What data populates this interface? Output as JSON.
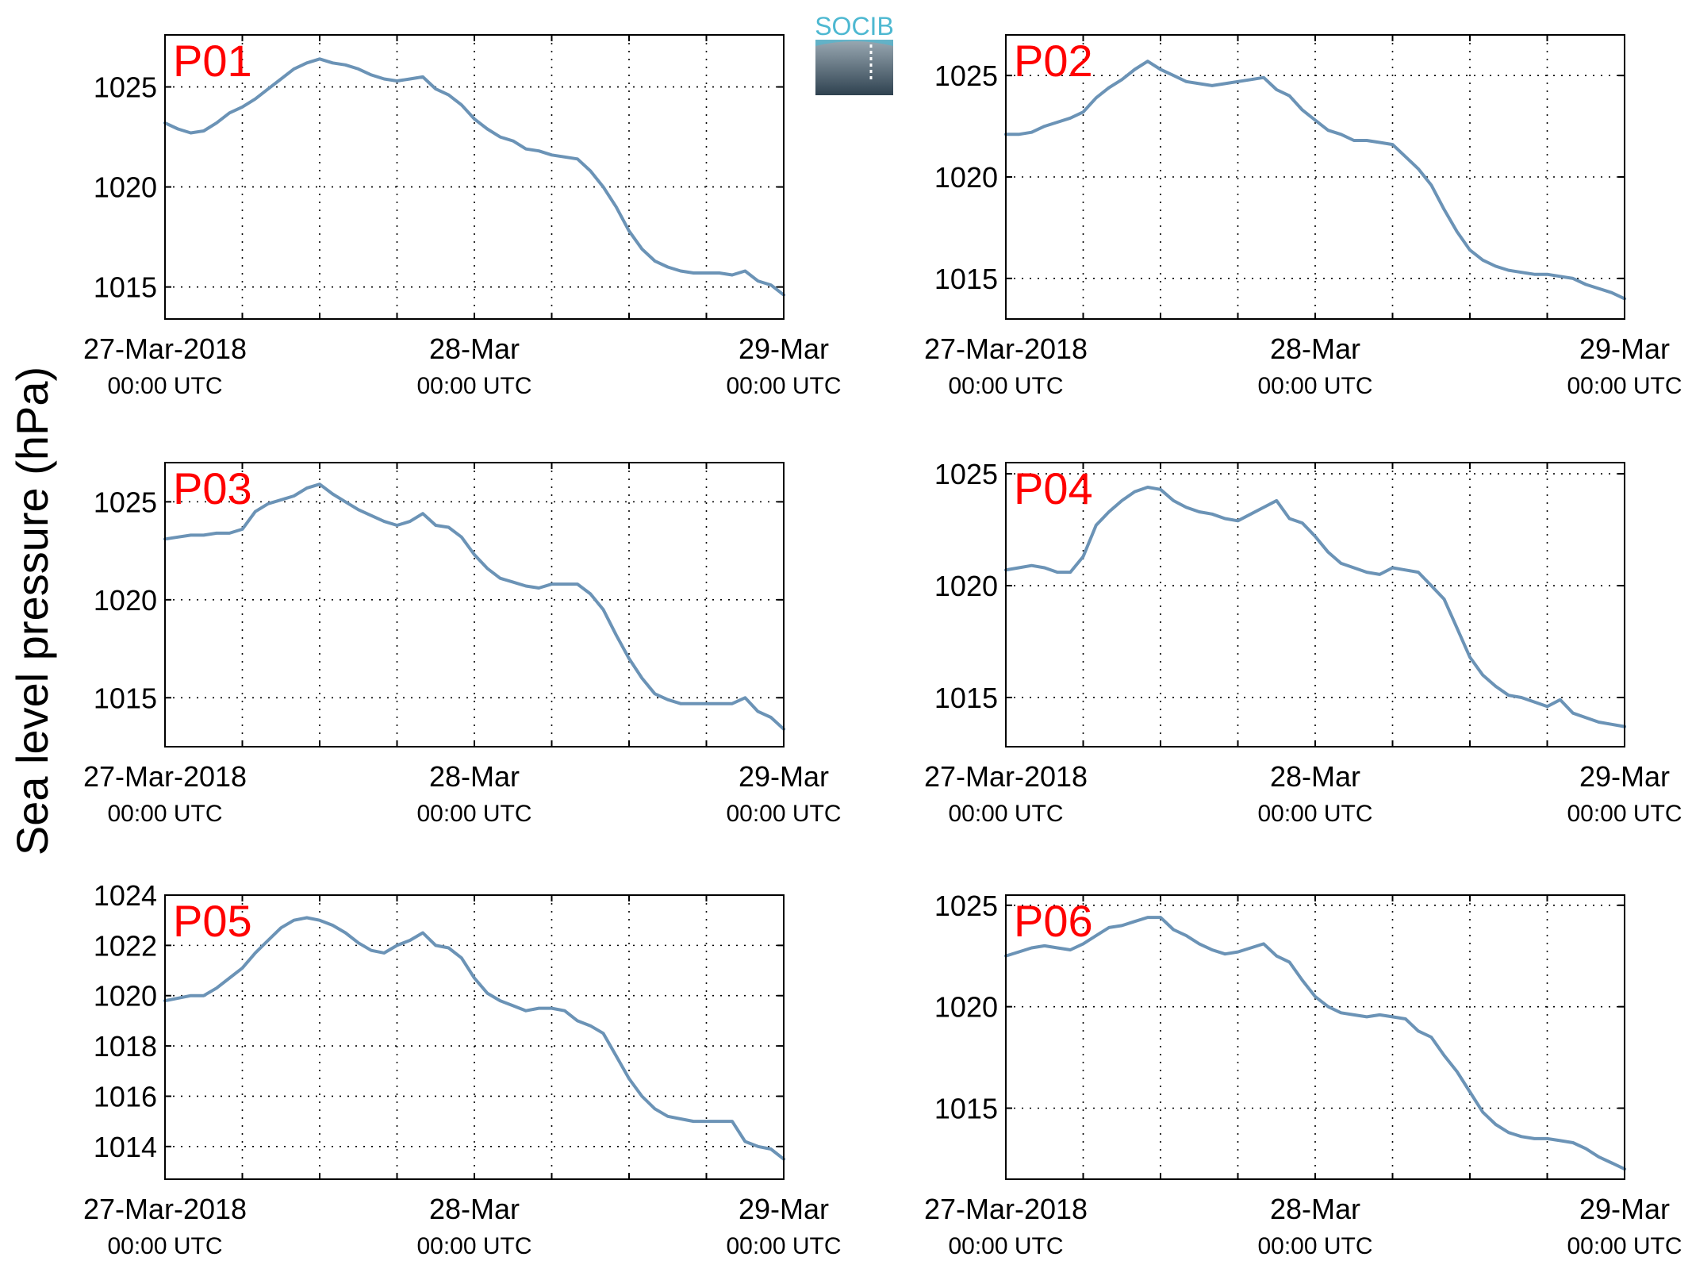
{
  "ylabel": "Sea level pressure (hPa)",
  "logo": {
    "text": "SOCIB",
    "colors": {
      "text": "#4db8d1",
      "top": "#9aa9b3",
      "bottom": "#2f4250"
    }
  },
  "colors": {
    "line": "#6b93b6",
    "panel_label": "#ff0000",
    "axis": "#000000",
    "grid": "#000000"
  },
  "xticks": [
    {
      "line1": "27-Mar-2018",
      "line2": "00:00 UTC"
    },
    {
      "line1": "28-Mar",
      "line2": "00:00 UTC"
    },
    {
      "line1": "29-Mar",
      "line2": "00:00 UTC"
    }
  ],
  "chart_data": [
    {
      "type": "line",
      "label": "P01",
      "x_hours_labels": [
        "27-Mar-2018 00:00 UTC",
        "28-Mar 00:00 UTC",
        "29-Mar 00:00 UTC"
      ],
      "xlim": [
        0,
        48
      ],
      "ylim": [
        1013.4,
        1027.6
      ],
      "yticks": [
        1015,
        1020,
        1025
      ],
      "points": [
        [
          0,
          1023.2
        ],
        [
          1,
          1022.9
        ],
        [
          2,
          1022.7
        ],
        [
          3,
          1022.8
        ],
        [
          4,
          1023.2
        ],
        [
          5,
          1023.7
        ],
        [
          6,
          1024.0
        ],
        [
          7,
          1024.4
        ],
        [
          8,
          1024.9
        ],
        [
          9,
          1025.4
        ],
        [
          10,
          1025.9
        ],
        [
          11,
          1026.2
        ],
        [
          12,
          1026.4
        ],
        [
          13,
          1026.2
        ],
        [
          14,
          1026.1
        ],
        [
          15,
          1025.9
        ],
        [
          16,
          1025.6
        ],
        [
          17,
          1025.4
        ],
        [
          18,
          1025.3
        ],
        [
          19,
          1025.4
        ],
        [
          20,
          1025.5
        ],
        [
          21,
          1024.9
        ],
        [
          22,
          1024.6
        ],
        [
          23,
          1024.1
        ],
        [
          24,
          1023.4
        ],
        [
          25,
          1022.9
        ],
        [
          26,
          1022.5
        ],
        [
          27,
          1022.3
        ],
        [
          28,
          1021.9
        ],
        [
          29,
          1021.8
        ],
        [
          30,
          1021.6
        ],
        [
          31,
          1021.5
        ],
        [
          32,
          1021.4
        ],
        [
          33,
          1020.8
        ],
        [
          34,
          1020.0
        ],
        [
          35,
          1019.0
        ],
        [
          36,
          1017.8
        ],
        [
          37,
          1016.9
        ],
        [
          38,
          1016.3
        ],
        [
          39,
          1016.0
        ],
        [
          40,
          1015.8
        ],
        [
          41,
          1015.7
        ],
        [
          42,
          1015.7
        ],
        [
          43,
          1015.7
        ],
        [
          44,
          1015.6
        ],
        [
          45,
          1015.8
        ],
        [
          46,
          1015.3
        ],
        [
          47,
          1015.1
        ],
        [
          48,
          1014.6
        ]
      ]
    },
    {
      "type": "line",
      "label": "P02",
      "x_hours_labels": [
        "27-Mar-2018 00:00 UTC",
        "28-Mar 00:00 UTC",
        "29-Mar 00:00 UTC"
      ],
      "xlim": [
        0,
        48
      ],
      "ylim": [
        1013.0,
        1027.0
      ],
      "yticks": [
        1015,
        1020,
        1025
      ],
      "points": [
        [
          0,
          1022.1
        ],
        [
          1,
          1022.1
        ],
        [
          2,
          1022.2
        ],
        [
          3,
          1022.5
        ],
        [
          4,
          1022.7
        ],
        [
          5,
          1022.9
        ],
        [
          6,
          1023.2
        ],
        [
          7,
          1023.9
        ],
        [
          8,
          1024.4
        ],
        [
          9,
          1024.8
        ],
        [
          10,
          1025.3
        ],
        [
          11,
          1025.7
        ],
        [
          12,
          1025.3
        ],
        [
          13,
          1025.0
        ],
        [
          14,
          1024.7
        ],
        [
          15,
          1024.6
        ],
        [
          16,
          1024.5
        ],
        [
          17,
          1024.6
        ],
        [
          18,
          1024.7
        ],
        [
          19,
          1024.8
        ],
        [
          20,
          1024.9
        ],
        [
          21,
          1024.3
        ],
        [
          22,
          1024.0
        ],
        [
          23,
          1023.3
        ],
        [
          24,
          1022.8
        ],
        [
          25,
          1022.3
        ],
        [
          26,
          1022.1
        ],
        [
          27,
          1021.8
        ],
        [
          28,
          1021.8
        ],
        [
          29,
          1021.7
        ],
        [
          30,
          1021.6
        ],
        [
          31,
          1021.0
        ],
        [
          32,
          1020.4
        ],
        [
          33,
          1019.6
        ],
        [
          34,
          1018.4
        ],
        [
          35,
          1017.3
        ],
        [
          36,
          1016.4
        ],
        [
          37,
          1015.9
        ],
        [
          38,
          1015.6
        ],
        [
          39,
          1015.4
        ],
        [
          40,
          1015.3
        ],
        [
          41,
          1015.2
        ],
        [
          42,
          1015.2
        ],
        [
          43,
          1015.1
        ],
        [
          44,
          1015.0
        ],
        [
          45,
          1014.7
        ],
        [
          46,
          1014.5
        ],
        [
          47,
          1014.3
        ],
        [
          48,
          1014.0
        ]
      ]
    },
    {
      "type": "line",
      "label": "P03",
      "x_hours_labels": [
        "27-Mar-2018 00:00 UTC",
        "28-Mar 00:00 UTC",
        "29-Mar 00:00 UTC"
      ],
      "xlim": [
        0,
        48
      ],
      "ylim": [
        1012.5,
        1027.0
      ],
      "yticks": [
        1015,
        1020,
        1025
      ],
      "points": [
        [
          0,
          1023.1
        ],
        [
          1,
          1023.2
        ],
        [
          2,
          1023.3
        ],
        [
          3,
          1023.3
        ],
        [
          4,
          1023.4
        ],
        [
          5,
          1023.4
        ],
        [
          6,
          1023.6
        ],
        [
          7,
          1024.5
        ],
        [
          8,
          1024.9
        ],
        [
          9,
          1025.1
        ],
        [
          10,
          1025.3
        ],
        [
          11,
          1025.7
        ],
        [
          12,
          1025.9
        ],
        [
          13,
          1025.4
        ],
        [
          14,
          1025.0
        ],
        [
          15,
          1024.6
        ],
        [
          16,
          1024.3
        ],
        [
          17,
          1024.0
        ],
        [
          18,
          1023.8
        ],
        [
          19,
          1024.0
        ],
        [
          20,
          1024.4
        ],
        [
          21,
          1023.8
        ],
        [
          22,
          1023.7
        ],
        [
          23,
          1023.2
        ],
        [
          24,
          1022.3
        ],
        [
          25,
          1021.6
        ],
        [
          26,
          1021.1
        ],
        [
          27,
          1020.9
        ],
        [
          28,
          1020.7
        ],
        [
          29,
          1020.6
        ],
        [
          30,
          1020.8
        ],
        [
          31,
          1020.8
        ],
        [
          32,
          1020.8
        ],
        [
          33,
          1020.3
        ],
        [
          34,
          1019.5
        ],
        [
          35,
          1018.2
        ],
        [
          36,
          1017.0
        ],
        [
          37,
          1016.0
        ],
        [
          38,
          1015.2
        ],
        [
          39,
          1014.9
        ],
        [
          40,
          1014.7
        ],
        [
          41,
          1014.7
        ],
        [
          42,
          1014.7
        ],
        [
          43,
          1014.7
        ],
        [
          44,
          1014.7
        ],
        [
          45,
          1015.0
        ],
        [
          46,
          1014.3
        ],
        [
          47,
          1014.0
        ],
        [
          48,
          1013.4
        ]
      ]
    },
    {
      "type": "line",
      "label": "P04",
      "x_hours_labels": [
        "27-Mar-2018 00:00 UTC",
        "28-Mar 00:00 UTC",
        "29-Mar 00:00 UTC"
      ],
      "xlim": [
        0,
        48
      ],
      "ylim": [
        1012.8,
        1025.5
      ],
      "yticks": [
        1015,
        1020,
        1025
      ],
      "points": [
        [
          0,
          1020.7
        ],
        [
          1,
          1020.8
        ],
        [
          2,
          1020.9
        ],
        [
          3,
          1020.8
        ],
        [
          4,
          1020.6
        ],
        [
          5,
          1020.6
        ],
        [
          6,
          1021.3
        ],
        [
          7,
          1022.7
        ],
        [
          8,
          1023.3
        ],
        [
          9,
          1023.8
        ],
        [
          10,
          1024.2
        ],
        [
          11,
          1024.4
        ],
        [
          12,
          1024.3
        ],
        [
          13,
          1023.8
        ],
        [
          14,
          1023.5
        ],
        [
          15,
          1023.3
        ],
        [
          16,
          1023.2
        ],
        [
          17,
          1023.0
        ],
        [
          18,
          1022.9
        ],
        [
          19,
          1023.2
        ],
        [
          20,
          1023.5
        ],
        [
          21,
          1023.8
        ],
        [
          22,
          1023.0
        ],
        [
          23,
          1022.8
        ],
        [
          24,
          1022.2
        ],
        [
          25,
          1021.5
        ],
        [
          26,
          1021.0
        ],
        [
          27,
          1020.8
        ],
        [
          28,
          1020.6
        ],
        [
          29,
          1020.5
        ],
        [
          30,
          1020.8
        ],
        [
          31,
          1020.7
        ],
        [
          32,
          1020.6
        ],
        [
          33,
          1020.0
        ],
        [
          34,
          1019.4
        ],
        [
          35,
          1018.1
        ],
        [
          36,
          1016.8
        ],
        [
          37,
          1016.0
        ],
        [
          38,
          1015.5
        ],
        [
          39,
          1015.1
        ],
        [
          40,
          1015.0
        ],
        [
          41,
          1014.8
        ],
        [
          42,
          1014.6
        ],
        [
          43,
          1014.9
        ],
        [
          44,
          1014.3
        ],
        [
          45,
          1014.1
        ],
        [
          46,
          1013.9
        ],
        [
          47,
          1013.8
        ],
        [
          48,
          1013.7
        ]
      ]
    },
    {
      "type": "line",
      "label": "P05",
      "x_hours_labels": [
        "27-Mar-2018 00:00 UTC",
        "28-Mar 00:00 UTC",
        "29-Mar 00:00 UTC"
      ],
      "xlim": [
        0,
        48
      ],
      "ylim": [
        1012.7,
        1024.0
      ],
      "yticks": [
        1014,
        1016,
        1018,
        1020,
        1022,
        1024
      ],
      "points": [
        [
          0,
          1019.8
        ],
        [
          1,
          1019.9
        ],
        [
          2,
          1020.0
        ],
        [
          3,
          1020.0
        ],
        [
          4,
          1020.3
        ],
        [
          5,
          1020.7
        ],
        [
          6,
          1021.1
        ],
        [
          7,
          1021.7
        ],
        [
          8,
          1022.2
        ],
        [
          9,
          1022.7
        ],
        [
          10,
          1023.0
        ],
        [
          11,
          1023.1
        ],
        [
          12,
          1023.0
        ],
        [
          13,
          1022.8
        ],
        [
          14,
          1022.5
        ],
        [
          15,
          1022.1
        ],
        [
          16,
          1021.8
        ],
        [
          17,
          1021.7
        ],
        [
          18,
          1022.0
        ],
        [
          19,
          1022.2
        ],
        [
          20,
          1022.5
        ],
        [
          21,
          1022.0
        ],
        [
          22,
          1021.9
        ],
        [
          23,
          1021.5
        ],
        [
          24,
          1020.7
        ],
        [
          25,
          1020.1
        ],
        [
          26,
          1019.8
        ],
        [
          27,
          1019.6
        ],
        [
          28,
          1019.4
        ],
        [
          29,
          1019.5
        ],
        [
          30,
          1019.5
        ],
        [
          31,
          1019.4
        ],
        [
          32,
          1019.0
        ],
        [
          33,
          1018.8
        ],
        [
          34,
          1018.5
        ],
        [
          35,
          1017.6
        ],
        [
          36,
          1016.7
        ],
        [
          37,
          1016.0
        ],
        [
          38,
          1015.5
        ],
        [
          39,
          1015.2
        ],
        [
          40,
          1015.1
        ],
        [
          41,
          1015.0
        ],
        [
          42,
          1015.0
        ],
        [
          43,
          1015.0
        ],
        [
          44,
          1015.0
        ],
        [
          45,
          1014.2
        ],
        [
          46,
          1014.0
        ],
        [
          47,
          1013.9
        ],
        [
          48,
          1013.5
        ]
      ]
    },
    {
      "type": "line",
      "label": "P06",
      "x_hours_labels": [
        "27-Mar-2018 00:00 UTC",
        "28-Mar 00:00 UTC",
        "29-Mar 00:00 UTC"
      ],
      "xlim": [
        0,
        48
      ],
      "ylim": [
        1011.5,
        1025.5
      ],
      "yticks": [
        1015,
        1020,
        1025
      ],
      "points": [
        [
          0,
          1022.5
        ],
        [
          1,
          1022.7
        ],
        [
          2,
          1022.9
        ],
        [
          3,
          1023.0
        ],
        [
          4,
          1022.9
        ],
        [
          5,
          1022.8
        ],
        [
          6,
          1023.1
        ],
        [
          7,
          1023.5
        ],
        [
          8,
          1023.9
        ],
        [
          9,
          1024.0
        ],
        [
          10,
          1024.2
        ],
        [
          11,
          1024.4
        ],
        [
          12,
          1024.4
        ],
        [
          13,
          1023.8
        ],
        [
          14,
          1023.5
        ],
        [
          15,
          1023.1
        ],
        [
          16,
          1022.8
        ],
        [
          17,
          1022.6
        ],
        [
          18,
          1022.7
        ],
        [
          19,
          1022.9
        ],
        [
          20,
          1023.1
        ],
        [
          21,
          1022.5
        ],
        [
          22,
          1022.2
        ],
        [
          23,
          1021.3
        ],
        [
          24,
          1020.5
        ],
        [
          25,
          1020.0
        ],
        [
          26,
          1019.7
        ],
        [
          27,
          1019.6
        ],
        [
          28,
          1019.5
        ],
        [
          29,
          1019.6
        ],
        [
          30,
          1019.5
        ],
        [
          31,
          1019.4
        ],
        [
          32,
          1018.8
        ],
        [
          33,
          1018.5
        ],
        [
          34,
          1017.6
        ],
        [
          35,
          1016.8
        ],
        [
          36,
          1015.8
        ],
        [
          37,
          1014.8
        ],
        [
          38,
          1014.2
        ],
        [
          39,
          1013.8
        ],
        [
          40,
          1013.6
        ],
        [
          41,
          1013.5
        ],
        [
          42,
          1013.5
        ],
        [
          43,
          1013.4
        ],
        [
          44,
          1013.3
        ],
        [
          45,
          1013.0
        ],
        [
          46,
          1012.6
        ],
        [
          47,
          1012.3
        ],
        [
          48,
          1012.0
        ]
      ]
    }
  ]
}
